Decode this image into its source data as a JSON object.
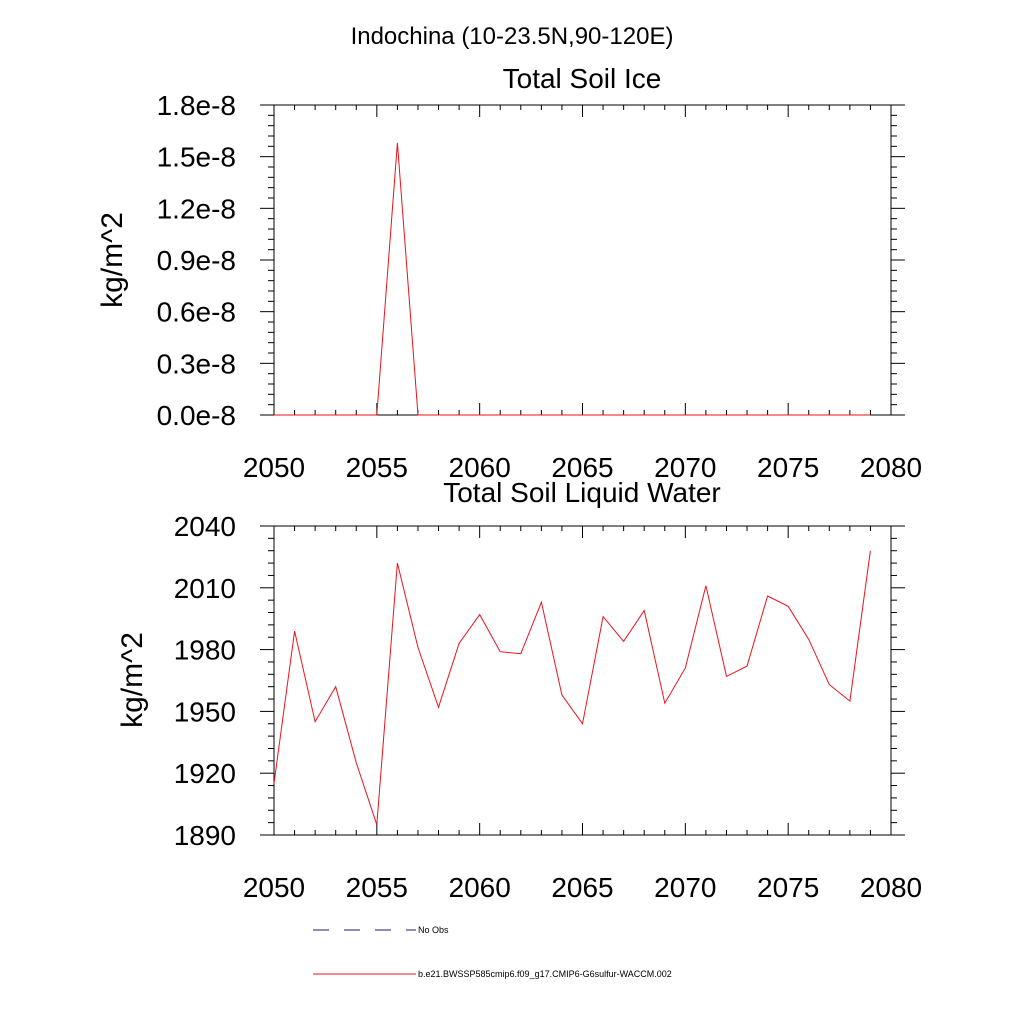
{
  "page_title": "Indochina (10-23.5N,90-120E)",
  "legend": {
    "items": [
      {
        "label": "No Obs",
        "color": "#1a1a6e",
        "dash": true
      },
      {
        "label": "b.e21.BWSSP585cmip6.f09_g17.CMIP6-G6sulfur-WACCM.002",
        "color": "#e8141b",
        "dash": false
      }
    ]
  },
  "chart_data": [
    {
      "type": "line",
      "title": "Total Soil Ice",
      "ylabel": "kg/m^2",
      "xlabel": "",
      "xlim": [
        2050,
        2080
      ],
      "ylim": [
        0,
        1.8e-08
      ],
      "xticks": [
        2050,
        2055,
        2060,
        2065,
        2070,
        2075,
        2080
      ],
      "yticks": [
        0,
        3e-09,
        6e-09,
        9e-09,
        1.2e-08,
        1.5e-08,
        1.8e-08
      ],
      "yticklabels": [
        "0.0e-8",
        "0.3e-8",
        "0.6e-8",
        "0.9e-8",
        "1.2e-8",
        "1.5e-8",
        "1.8e-8"
      ],
      "series": [
        {
          "color": "#e8141b",
          "x": [
            2050,
            2051,
            2052,
            2053,
            2054,
            2055,
            2056,
            2057,
            2058,
            2059,
            2060,
            2061,
            2062,
            2063,
            2064,
            2065,
            2066,
            2067,
            2068,
            2069,
            2070,
            2071,
            2072,
            2073,
            2074,
            2075,
            2076,
            2077,
            2078,
            2079
          ],
          "y": [
            0,
            0,
            0,
            0,
            0,
            0,
            1.58e-08,
            0,
            0,
            0,
            0,
            0,
            0,
            0,
            0,
            0,
            0,
            0,
            0,
            0,
            0,
            0,
            0,
            0,
            0,
            0,
            0,
            0,
            0,
            0
          ]
        }
      ]
    },
    {
      "type": "line",
      "title": "Total Soil Liquid Water",
      "ylabel": "kg/m^2",
      "xlabel": "",
      "xlim": [
        2050,
        2080
      ],
      "ylim": [
        1890,
        2040
      ],
      "xticks": [
        2050,
        2055,
        2060,
        2065,
        2070,
        2075,
        2080
      ],
      "yticks": [
        1890,
        1920,
        1950,
        1980,
        2010,
        2040
      ],
      "yticklabels": [
        "1890",
        "1920",
        "1950",
        "1980",
        "2010",
        "2040"
      ],
      "series": [
        {
          "color": "#e8141b",
          "x": [
            2050,
            2051,
            2052,
            2053,
            2054,
            2055,
            2056,
            2057,
            2058,
            2059,
            2060,
            2061,
            2062,
            2063,
            2064,
            2065,
            2066,
            2067,
            2068,
            2069,
            2070,
            2071,
            2072,
            2073,
            2074,
            2075,
            2076,
            2077,
            2078,
            2079
          ],
          "y": [
            1915,
            1989,
            1945,
            1962,
            1925,
            1895,
            2022,
            1981,
            1952,
            1983,
            1997,
            1979,
            1978,
            2003,
            1958,
            1944,
            1996,
            1984,
            1999,
            1954,
            1971,
            2011,
            1967,
            1972,
            2006,
            2001,
            1985,
            1963,
            1955,
            2028
          ]
        }
      ]
    }
  ]
}
